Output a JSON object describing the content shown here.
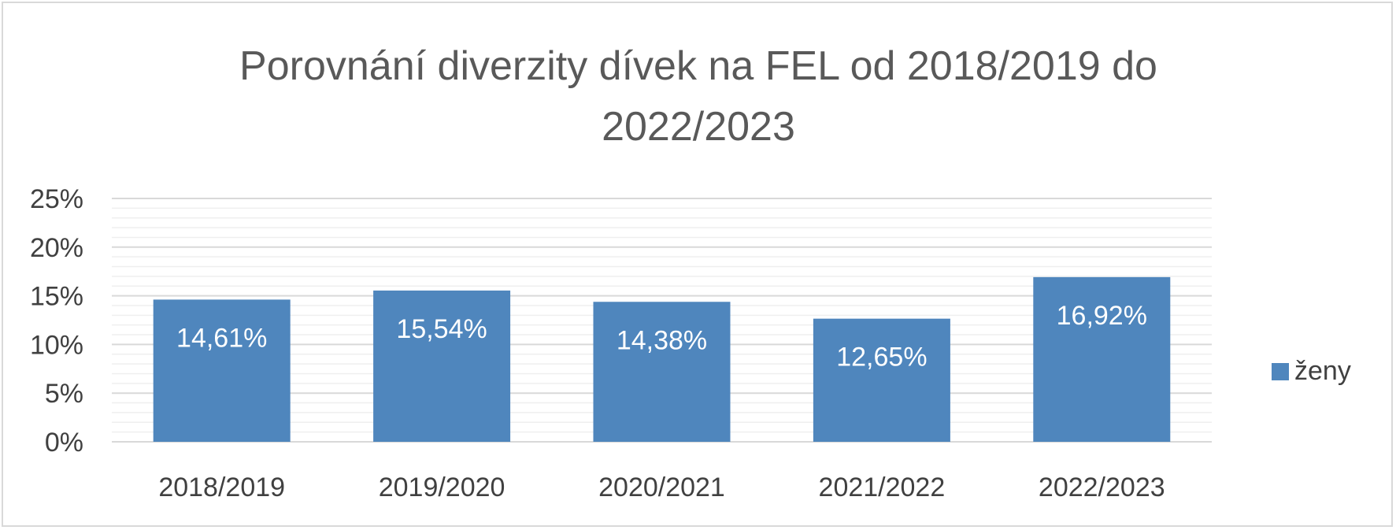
{
  "chart_data": {
    "type": "bar",
    "title_lines": [
      "Porovnání diverzity dívek na FEL od 2018/2019 do",
      "2022/2023"
    ],
    "categories": [
      "2018/2019",
      "2019/2020",
      "2020/2021",
      "2021/2022",
      "2022/2023"
    ],
    "series": [
      {
        "name": "ženy",
        "values": [
          14.61,
          15.54,
          14.38,
          12.65,
          16.92
        ],
        "labels": [
          "14,61%",
          "15,54%",
          "14,38%",
          "12,65%",
          "16,92%"
        ],
        "color": "#4f86bd"
      }
    ],
    "y_ticks": [
      "0%",
      "5%",
      "10%",
      "15%",
      "20%",
      "25%"
    ],
    "ylim": [
      0,
      25
    ],
    "major_grid": true,
    "minor_grid": true,
    "legend_position": "right",
    "colors": {
      "major_grid": "#d9d9d9",
      "minor_grid": "#efefef",
      "axis_text": "#404040",
      "title": "#595959"
    }
  }
}
